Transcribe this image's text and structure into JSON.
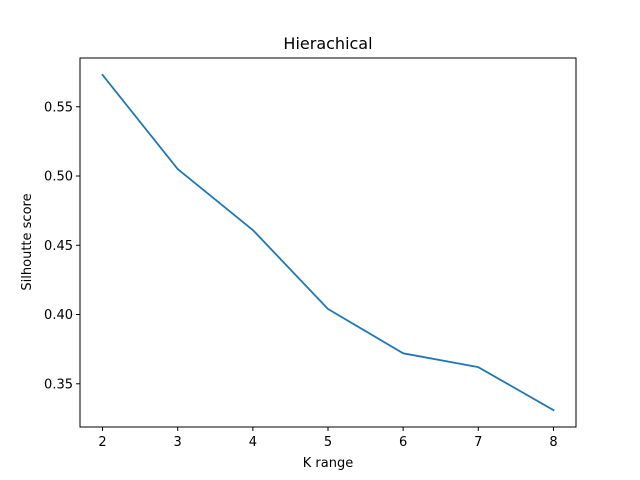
{
  "chart_data": {
    "type": "line",
    "title": "Hierachical",
    "xlabel": "K range",
    "ylabel": "Silhoutte score",
    "x": [
      2,
      3,
      4,
      5,
      6,
      7,
      8
    ],
    "series": [
      {
        "values": [
          0.573,
          0.505,
          0.461,
          0.404,
          0.372,
          0.362,
          0.331
        ],
        "color": "#1f77b4"
      }
    ],
    "xticks": [
      2,
      3,
      4,
      5,
      6,
      7,
      8
    ],
    "yticks": [
      0.35,
      0.4,
      0.45,
      0.5,
      0.55
    ],
    "ytick_labels": [
      "0.35",
      "0.40",
      "0.45",
      "0.50",
      "0.55"
    ],
    "xlim": [
      1.7,
      8.3
    ],
    "ylim": [
      0.3188,
      0.5852
    ],
    "grid": false,
    "legend": "none"
  }
}
